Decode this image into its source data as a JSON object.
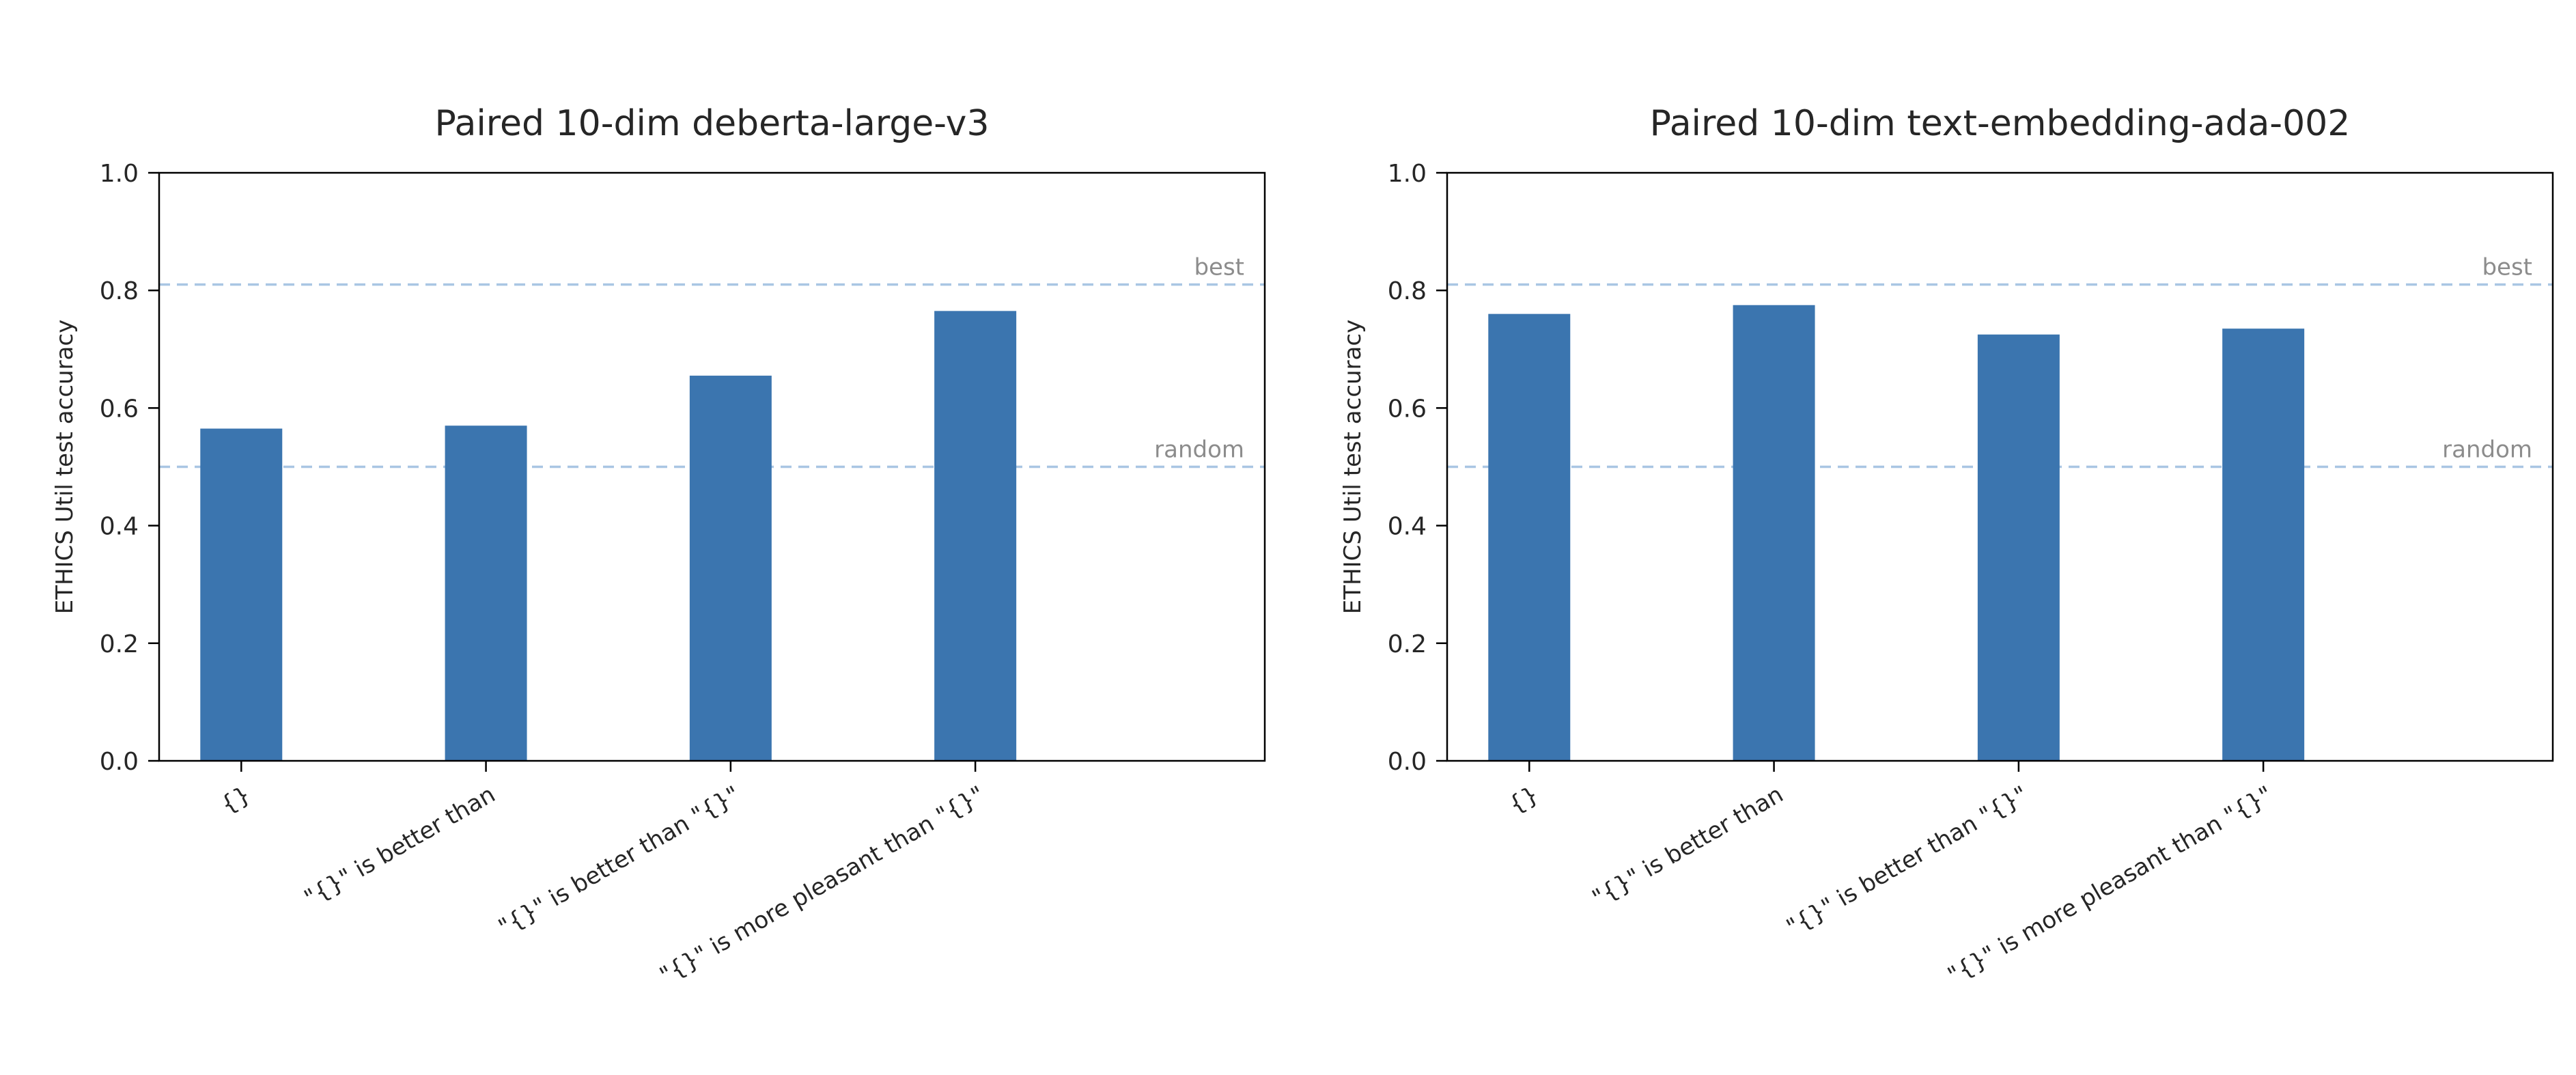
{
  "colors": {
    "bar": "#3b75af",
    "dashed_line": "#a9c6e3",
    "annotation_text": "#8c8c8c",
    "axis_text": "#262626",
    "spine": "#000000",
    "background": "#ffffff"
  },
  "chart_data": [
    {
      "type": "bar",
      "title": "Paired 10-dim deberta-large-v3",
      "xlabel": "",
      "ylabel": "ETHICS Util test accuracy",
      "categories": [
        "{}",
        "\"{}\" is better than",
        "\"{}\" is better than \"{}\"",
        "\"{}\" is more pleasant than \"{}\""
      ],
      "values": [
        0.565,
        0.57,
        0.655,
        0.765
      ],
      "ylim": [
        0.0,
        1.0
      ],
      "yticks": [
        0.0,
        0.2,
        0.4,
        0.6,
        0.8,
        1.0
      ],
      "grid": false,
      "legend": "none",
      "x_tick_rotation_deg": 30,
      "reference_lines": [
        {
          "label": "best",
          "value": 0.81
        },
        {
          "label": "random",
          "value": 0.5
        }
      ]
    },
    {
      "type": "bar",
      "title": "Paired 10-dim text-embedding-ada-002",
      "xlabel": "",
      "ylabel": "ETHICS Util test accuracy",
      "categories": [
        "{}",
        "\"{}\" is better than",
        "\"{}\" is better than \"{}\"",
        "\"{}\" is more pleasant than \"{}\""
      ],
      "values": [
        0.76,
        0.775,
        0.725,
        0.735
      ],
      "ylim": [
        0.0,
        1.0
      ],
      "yticks": [
        0.0,
        0.2,
        0.4,
        0.6,
        0.8,
        1.0
      ],
      "grid": false,
      "legend": "none",
      "x_tick_rotation_deg": 30,
      "reference_lines": [
        {
          "label": "best",
          "value": 0.81
        },
        {
          "label": "random",
          "value": 0.5
        }
      ]
    }
  ]
}
